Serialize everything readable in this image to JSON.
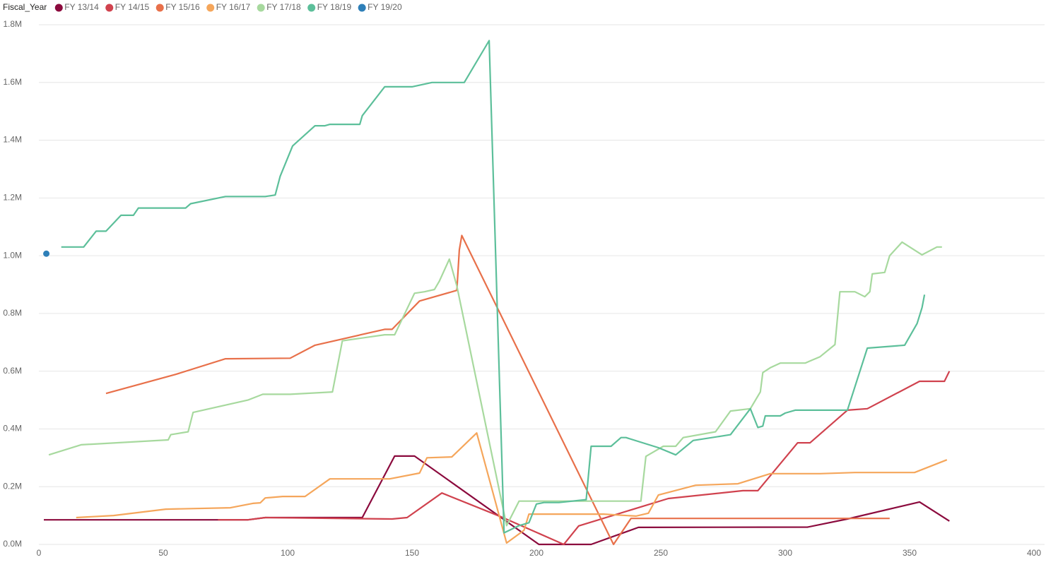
{
  "chart_data": {
    "type": "line",
    "legend_title": "Fiscal_Year",
    "legend_position": "top-left",
    "grid": true,
    "xlim": [
      0,
      400
    ],
    "xticks": [
      0,
      50,
      100,
      150,
      200,
      250,
      300,
      350,
      400
    ],
    "ylim": [
      0,
      1800000
    ],
    "yticks": [
      {
        "value": 0,
        "label": "0.0M"
      },
      {
        "value": 200000,
        "label": "0.2M"
      },
      {
        "value": 400000,
        "label": "0.4M"
      },
      {
        "value": 600000,
        "label": "0.6M"
      },
      {
        "value": 800000,
        "label": "0.8M"
      },
      {
        "value": 1000000,
        "label": "1.0M"
      },
      {
        "value": 1200000,
        "label": "1.2M"
      },
      {
        "value": 1400000,
        "label": "1.4M"
      },
      {
        "value": 1600000,
        "label": "1.6M"
      },
      {
        "value": 1800000,
        "label": "1.8M"
      }
    ],
    "series": [
      {
        "name": "FY 13/14",
        "color": "#8b0a3d",
        "x": [
          2,
          84,
          91,
          130,
          143,
          151,
          201,
          222,
          241,
          309,
          325,
          354,
          366
        ],
        "values": [
          85000,
          85000,
          93000,
          93000,
          306000,
          306000,
          0,
          0,
          59000,
          60000,
          88000,
          147000,
          81000
        ]
      },
      {
        "name": "FY 14/15",
        "color": "#d0424e",
        "x": [
          72,
          84,
          91,
          142,
          148,
          162,
          186,
          211,
          217,
          253,
          283,
          289,
          305,
          310,
          325,
          333,
          354,
          364,
          366
        ],
        "values": [
          85000,
          85000,
          93000,
          88000,
          93000,
          178000,
          95000,
          0,
          64000,
          159000,
          186000,
          186000,
          352000,
          352000,
          465000,
          470000,
          565000,
          565000,
          600000
        ]
      },
      {
        "name": "FY 15/16",
        "color": "#e8704a",
        "x": [
          27,
          55,
          75,
          101,
          111,
          139,
          142,
          153,
          168,
          169,
          170,
          231,
          238,
          342
        ],
        "values": [
          523000,
          589000,
          643000,
          645000,
          690000,
          745000,
          745000,
          843000,
          880000,
          1020000,
          1070000,
          0,
          90000,
          90000
        ]
      },
      {
        "name": "FY 16/17",
        "color": "#f5a65b",
        "x": [
          15,
          30,
          51,
          77,
          86,
          89,
          91,
          98,
          107,
          117,
          141,
          153,
          156,
          166,
          176,
          188,
          195,
          197,
          227,
          240,
          245,
          249,
          264,
          281,
          294,
          314,
          328,
          352,
          365
        ],
        "values": [
          93000,
          100000,
          122000,
          127000,
          142000,
          144000,
          161000,
          166000,
          166000,
          227000,
          227000,
          247000,
          300000,
          303000,
          386000,
          5000,
          49000,
          105000,
          105000,
          98000,
          108000,
          171000,
          205000,
          210000,
          245000,
          245000,
          249000,
          249000,
          293000
        ]
      },
      {
        "name": "FY 17/18",
        "color": "#a7d99e",
        "x": [
          4,
          17,
          52,
          53,
          60,
          62,
          84,
          90,
          101,
          118,
          122,
          139,
          143,
          151,
          155,
          159,
          161,
          165,
          168,
          188,
          193,
          242,
          244,
          251,
          256,
          259,
          272,
          278,
          286,
          290,
          291,
          294,
          298,
          308,
          314,
          320,
          322,
          328,
          332,
          334,
          335,
          340,
          342,
          347,
          355,
          361,
          363
        ],
        "values": [
          310000,
          345000,
          362000,
          380000,
          390000,
          457000,
          500000,
          520000,
          520000,
          528000,
          705000,
          726000,
          726000,
          870000,
          875000,
          883000,
          912000,
          988000,
          895000,
          65000,
          150000,
          150000,
          305000,
          340000,
          340000,
          370000,
          390000,
          462000,
          470000,
          528000,
          595000,
          612000,
          628000,
          628000,
          650000,
          692000,
          875000,
          875000,
          858000,
          875000,
          937000,
          942000,
          1000000,
          1047000,
          1003000,
          1030000,
          1030000
        ]
      },
      {
        "name": "FY 18/19",
        "color": "#5cbf9a",
        "x": [
          9,
          18,
          23,
          27,
          33,
          38,
          40,
          59,
          61,
          75,
          91,
          95,
          97,
          102,
          111,
          115,
          117,
          129,
          130,
          139,
          150,
          158,
          171,
          181,
          187,
          193,
          197,
          200,
          203,
          209,
          220,
          222,
          230,
          234,
          236,
          249,
          256,
          263,
          278,
          286,
          289,
          291,
          292,
          298,
          300,
          304,
          325,
          333,
          348,
          353,
          355,
          356
        ],
        "values": [
          1030000,
          1030000,
          1085000,
          1085000,
          1140000,
          1140000,
          1165000,
          1165000,
          1180000,
          1205000,
          1205000,
          1210000,
          1275000,
          1380000,
          1450000,
          1450000,
          1455000,
          1455000,
          1485000,
          1585000,
          1585000,
          1600000,
          1600000,
          1745000,
          40000,
          65000,
          75000,
          140000,
          145000,
          145000,
          155000,
          340000,
          340000,
          370000,
          370000,
          335000,
          310000,
          360000,
          380000,
          470000,
          405000,
          410000,
          445000,
          445000,
          455000,
          465000,
          465000,
          680000,
          690000,
          765000,
          820000,
          865000
        ]
      },
      {
        "name": "FY 19/20",
        "color": "#2e7fb8",
        "x": [
          3
        ],
        "values": [
          1007000
        ]
      }
    ]
  }
}
